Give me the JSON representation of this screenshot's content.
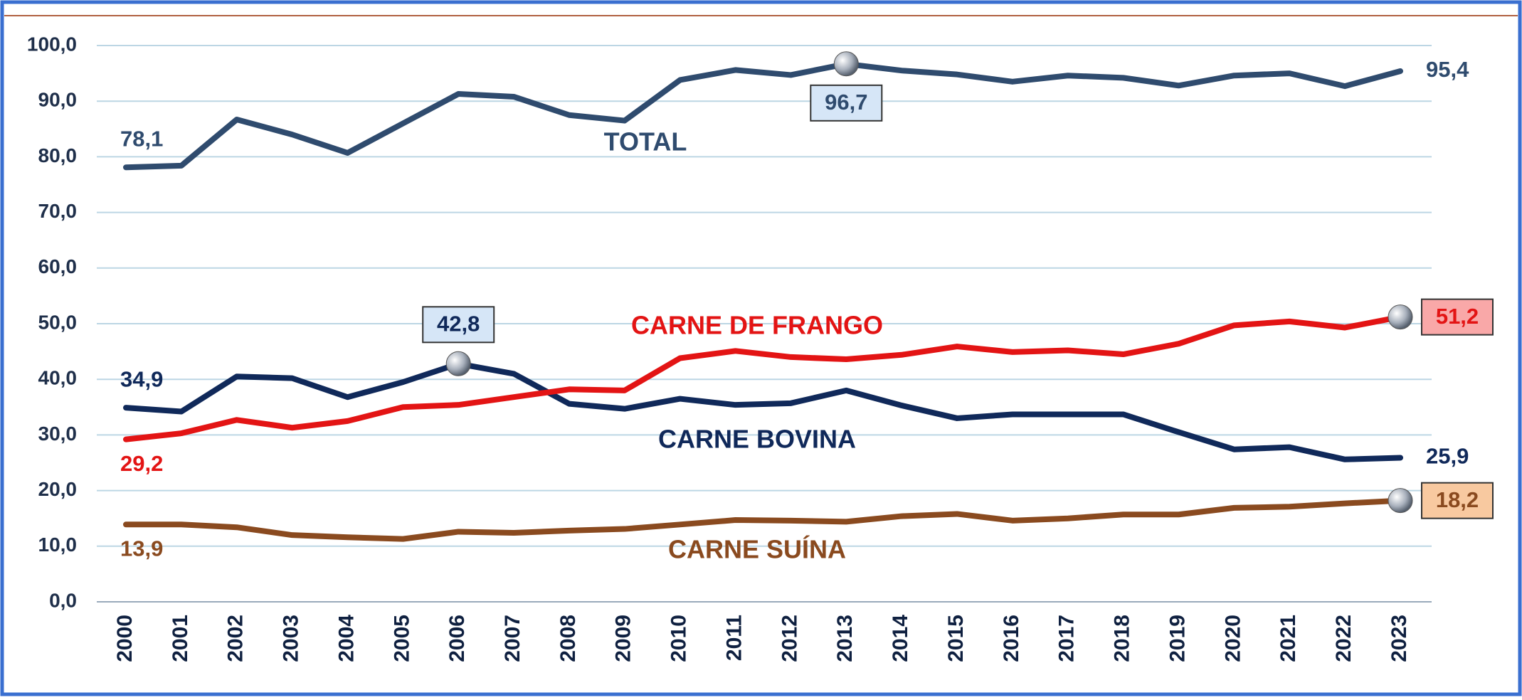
{
  "chart_data": {
    "type": "line",
    "categories": [
      "2000",
      "2001",
      "2002",
      "2003",
      "2004",
      "2005",
      "2006",
      "2007",
      "2008",
      "2009",
      "2010",
      "2011",
      "2012",
      "2013",
      "2014",
      "2015",
      "2016",
      "2017",
      "2018",
      "2019",
      "2020",
      "2021",
      "2022",
      "2023"
    ],
    "ylim": [
      0,
      100
    ],
    "yticks": [
      {
        "value": 0,
        "label": "0,0"
      },
      {
        "value": 10,
        "label": "10,0"
      },
      {
        "value": 20,
        "label": "20,0"
      },
      {
        "value": 30,
        "label": "30,0"
      },
      {
        "value": 40,
        "label": "40,0"
      },
      {
        "value": 50,
        "label": "50,0"
      },
      {
        "value": 60,
        "label": "60,0"
      },
      {
        "value": 70,
        "label": "70,0"
      },
      {
        "value": 80,
        "label": "80,0"
      },
      {
        "value": 90,
        "label": "90,0"
      },
      {
        "value": 100,
        "label": "100,0"
      }
    ],
    "grid": true,
    "series": [
      {
        "name": "TOTAL",
        "color": "#2f4b6e",
        "box_color": "#d6e6f7",
        "values": [
          78.1,
          78.4,
          86.7,
          84.0,
          80.7,
          86.0,
          91.3,
          90.8,
          87.5,
          86.5,
          93.8,
          95.6,
          94.7,
          96.7,
          95.5,
          94.8,
          93.5,
          94.6,
          94.2,
          92.8,
          94.6,
          95.0,
          92.7,
          95.4
        ],
        "value_labels": [
          "78,1",
          null,
          null,
          null,
          null,
          null,
          null,
          null,
          null,
          null,
          null,
          null,
          null,
          "96,7",
          null,
          null,
          null,
          null,
          null,
          null,
          null,
          null,
          null,
          "95,4"
        ]
      },
      {
        "name": "CARNE BOVINA",
        "color": "#10295a",
        "box_color": "#d6e6f7",
        "values": [
          34.9,
          34.2,
          40.5,
          40.2,
          36.8,
          39.5,
          42.8,
          41.0,
          35.6,
          34.7,
          36.5,
          35.4,
          35.7,
          38.0,
          35.3,
          33.0,
          33.7,
          33.7,
          33.7,
          30.5,
          27.4,
          27.8,
          25.6,
          25.9
        ],
        "value_labels": [
          "34,9",
          null,
          null,
          null,
          null,
          null,
          "42,8",
          null,
          null,
          null,
          null,
          null,
          null,
          null,
          null,
          null,
          null,
          null,
          null,
          null,
          null,
          null,
          null,
          "25,9"
        ]
      },
      {
        "name": "CARNE DE FRANGO",
        "color": "#e31414",
        "box_color": "#f9a8a8",
        "values": [
          29.2,
          30.3,
          32.7,
          31.3,
          32.5,
          35.0,
          35.4,
          36.8,
          38.2,
          38.0,
          43.8,
          45.1,
          44.0,
          43.6,
          44.4,
          45.9,
          44.9,
          45.2,
          44.5,
          46.4,
          49.7,
          50.4,
          49.3,
          51.2
        ],
        "value_labels": [
          "29,2",
          null,
          null,
          null,
          null,
          null,
          null,
          null,
          null,
          null,
          null,
          null,
          null,
          null,
          null,
          null,
          null,
          null,
          null,
          null,
          null,
          null,
          null,
          "51,2"
        ]
      },
      {
        "name": "CARNE SUÍNA",
        "color": "#8a4a1f",
        "box_color": "#f8c9a0",
        "values": [
          13.9,
          13.9,
          13.4,
          12.0,
          11.6,
          11.3,
          12.6,
          12.4,
          12.8,
          13.1,
          13.9,
          14.7,
          14.6,
          14.4,
          15.4,
          15.8,
          14.6,
          15.0,
          15.7,
          15.7,
          16.9,
          17.1,
          17.7,
          18.2
        ],
        "value_labels": [
          "13,9",
          null,
          null,
          null,
          null,
          null,
          null,
          null,
          null,
          null,
          null,
          null,
          null,
          null,
          null,
          null,
          null,
          null,
          null,
          null,
          null,
          null,
          null,
          "18,2"
        ]
      }
    ]
  }
}
